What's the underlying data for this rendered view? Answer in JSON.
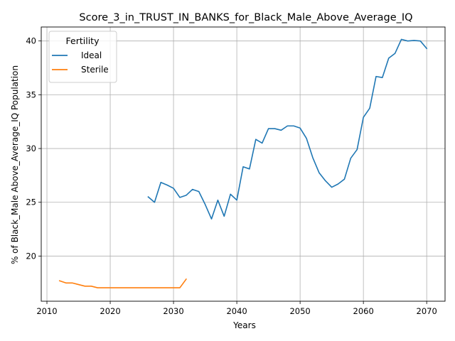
{
  "chart_data": {
    "type": "line",
    "title": "Score_3_in_TRUST_IN_BANKS_for_Black_Male_Above_Average_IQ",
    "xlabel": "Years",
    "ylabel": "% of Black_Male Above_Average_IQ Population",
    "xlim": [
      2009.1,
      2072.9
    ],
    "ylim": [
      15.8,
      41.3
    ],
    "xticks": [
      2010,
      2020,
      2030,
      2040,
      2050,
      2060,
      2070
    ],
    "yticks": [
      20,
      25,
      30,
      35,
      40
    ],
    "grid": true,
    "legend": {
      "title": "Fertility",
      "position": "top-left"
    },
    "series": [
      {
        "name": "Ideal",
        "color": "#1f77b4",
        "x": [
          2026,
          2027,
          2028,
          2029,
          2030,
          2031,
          2032,
          2033,
          2034,
          2035,
          2036,
          2037,
          2038,
          2039,
          2040,
          2041,
          2042,
          2043,
          2044,
          2045,
          2046,
          2047,
          2048,
          2049,
          2050,
          2051,
          2052,
          2053,
          2054,
          2055,
          2056,
          2057,
          2058,
          2059,
          2060,
          2061,
          2062,
          2063,
          2064,
          2065,
          2066,
          2067,
          2068,
          2069,
          2070
        ],
        "y": [
          25.5,
          25.0,
          26.85,
          26.6,
          26.3,
          25.45,
          25.65,
          26.2,
          26.0,
          24.8,
          23.45,
          25.2,
          23.7,
          25.75,
          25.2,
          28.3,
          28.1,
          30.85,
          30.5,
          31.85,
          31.85,
          31.7,
          32.1,
          32.1,
          31.9,
          30.95,
          29.15,
          27.75,
          27.0,
          26.4,
          26.7,
          27.15,
          29.1,
          29.9,
          32.9,
          33.75,
          36.7,
          36.6,
          38.4,
          38.85,
          40.15,
          40.0,
          40.05,
          40.0,
          39.3
        ]
      },
      {
        "name": "Sterile",
        "color": "#ff7f0e",
        "x": [
          2012,
          2013,
          2014,
          2015,
          2016,
          2017,
          2018,
          2019,
          2020,
          2021,
          2022,
          2023,
          2024,
          2025,
          2026,
          2027,
          2028,
          2029,
          2030,
          2031,
          2032
        ],
        "y": [
          17.7,
          17.5,
          17.5,
          17.35,
          17.2,
          17.2,
          17.05,
          17.05,
          17.05,
          17.05,
          17.05,
          17.05,
          17.05,
          17.05,
          17.05,
          17.05,
          17.05,
          17.05,
          17.05,
          17.05,
          17.85
        ]
      }
    ]
  }
}
